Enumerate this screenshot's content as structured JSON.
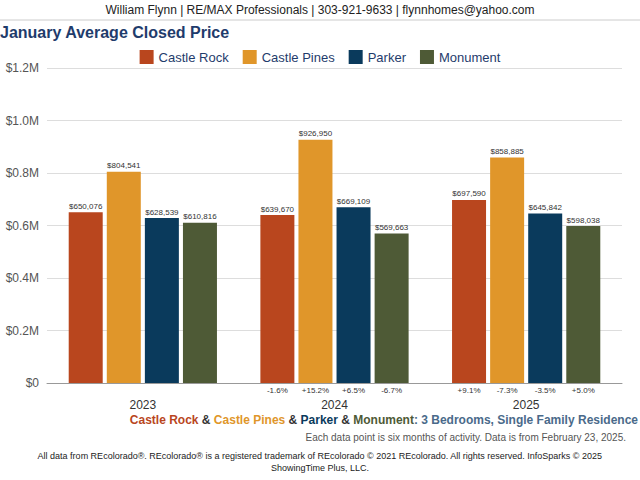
{
  "chart_data": {
    "type": "bar",
    "header": "William Flynn | RE/MAX Professionals | 303-921-9633 | flynnhomes@yahoo.com",
    "title": "January Average Closed Price",
    "subtitle": "Castle Rock & Castle Pines & Parker & Monument: 3 Bedrooms, Single Family Residence",
    "note": "Each data point is six months of activity. Data is from February 23, 2025.",
    "footer": [
      "All data from REcolorado®. REcolorado® is a registered trademark of REcolorado © 2021 REcolorado. All rights reserved. InfoSparks © 2025",
      "ShowingTime Plus, LLC."
    ],
    "categories": [
      "2023",
      "2024",
      "2025"
    ],
    "series": [
      {
        "name": "Castle Rock",
        "color": "#b9461e",
        "values": [
          650076,
          639670,
          697590
        ],
        "value_labels": [
          "$650,076",
          "$639,670",
          "$697,590"
        ],
        "changes": [
          null,
          -1.6,
          9.1
        ],
        "change_labels": [
          null,
          "-1.6%",
          "+9.1%"
        ]
      },
      {
        "name": "Castle Pines",
        "color": "#e0962a",
        "values": [
          804541,
          926950,
          858885
        ],
        "value_labels": [
          "$804,541",
          "$926,950",
          "$858,885"
        ],
        "changes": [
          null,
          15.2,
          -7.3
        ],
        "change_labels": [
          null,
          "+15.2%",
          "-7.3%"
        ]
      },
      {
        "name": "Parker",
        "color": "#0a3a5c",
        "values": [
          628539,
          669109,
          645842
        ],
        "value_labels": [
          "$628,539",
          "$669,109",
          "$645,842"
        ],
        "changes": [
          null,
          6.5,
          -3.5
        ],
        "change_labels": [
          null,
          "+6.5%",
          "-3.5%"
        ]
      },
      {
        "name": "Monument",
        "color": "#4e5a36",
        "values": [
          610816,
          569663,
          598038
        ],
        "value_labels": [
          "$610,816",
          "$569,663",
          "$598,038"
        ],
        "changes": [
          null,
          -6.7,
          5.0
        ],
        "change_labels": [
          null,
          "-6.7%",
          "+5.0%"
        ]
      }
    ],
    "ylim": [
      0,
      1200000
    ],
    "yticks": [
      {
        "value": 0,
        "label": "$0"
      },
      {
        "value": 200000,
        "label": "$0.2M"
      },
      {
        "value": 400000,
        "label": "$0.4M"
      },
      {
        "value": 600000,
        "label": "$0.6M"
      },
      {
        "value": 800000,
        "label": "$0.8M"
      },
      {
        "value": 1000000,
        "label": "$1.0M"
      },
      {
        "value": 1200000,
        "label": "$1.2M"
      }
    ],
    "grid": true,
    "legend": "top",
    "data_labels": true
  }
}
